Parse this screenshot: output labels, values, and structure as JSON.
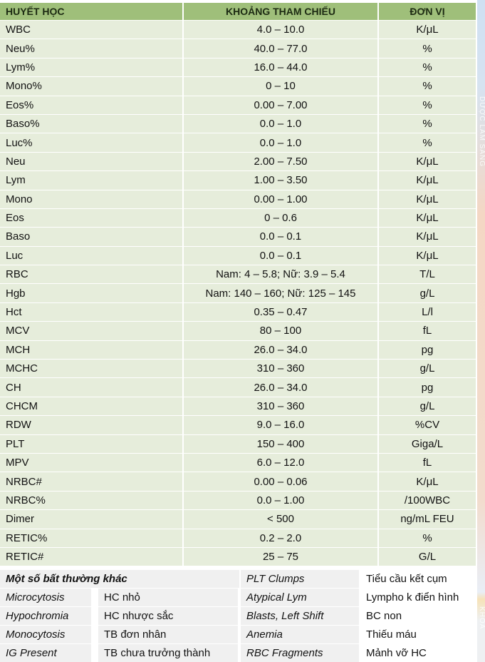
{
  "headers": {
    "test": "HUYẾT HỌC",
    "range": "KHOẢNG THAM CHIẾU",
    "unit": "ĐƠN VỊ"
  },
  "rows": [
    {
      "test": "WBC",
      "range": "4.0 – 10.0",
      "unit": "K/μL"
    },
    {
      "test": "Neu%",
      "range": "40.0 – 77.0",
      "unit": "%"
    },
    {
      "test": "Lym%",
      "range": "16.0 – 44.0",
      "unit": "%"
    },
    {
      "test": "Mono%",
      "range": "0 – 10",
      "unit": "%"
    },
    {
      "test": "Eos%",
      "range": "0.00 – 7.00",
      "unit": "%"
    },
    {
      "test": "Baso%",
      "range": "0.0 – 1.0",
      "unit": "%"
    },
    {
      "test": "Luc%",
      "range": "0.0 – 1.0",
      "unit": "%"
    },
    {
      "test": "Neu",
      "range": "2.00 – 7.50",
      "unit": "K/μL"
    },
    {
      "test": "Lym",
      "range": "1.00 – 3.50",
      "unit": "K/μL"
    },
    {
      "test": "Mono",
      "range": "0.00 – 1.00",
      "unit": "K/μL"
    },
    {
      "test": "Eos",
      "range": "0 – 0.6",
      "unit": "K/μL"
    },
    {
      "test": "Baso",
      "range": "0.0 – 0.1",
      "unit": "K/μL"
    },
    {
      "test": "Luc",
      "range": "0.0 – 0.1",
      "unit": "K/μL"
    },
    {
      "test": "RBC",
      "range": "Nam: 4 – 5.8; Nữ: 3.9 – 5.4",
      "unit": "T/L"
    },
    {
      "test": "Hgb",
      "range": "Nam: 140 – 160; Nữ: 125 – 145",
      "unit": "g/L"
    },
    {
      "test": "Hct",
      "range": "0.35 – 0.47",
      "unit": "L/l"
    },
    {
      "test": "MCV",
      "range": "80 – 100",
      "unit": "fL"
    },
    {
      "test": "MCH",
      "range": "26.0 – 34.0",
      "unit": "pg"
    },
    {
      "test": "MCHC",
      "range": "310 – 360",
      "unit": "g/L"
    },
    {
      "test": "CH",
      "range": "26.0 – 34.0",
      "unit": "pg"
    },
    {
      "test": "CHCM",
      "range": "310 – 360",
      "unit": "g/L"
    },
    {
      "test": "RDW",
      "range": "9.0 – 16.0",
      "unit": "%CV"
    },
    {
      "test": "PLT",
      "range": "150 – 400",
      "unit": "Giga/L"
    },
    {
      "test": "MPV",
      "range": "6.0 – 12.0",
      "unit": "fL"
    },
    {
      "test": "NRBC#",
      "range": "0.00 – 0.06",
      "unit": "K/μL"
    },
    {
      "test": "NRBC%",
      "range": "0.0 – 1.00",
      "unit": "/100WBC"
    },
    {
      "test": "Dimer",
      "range": "< 500",
      "unit": "ng/mL FEU"
    },
    {
      "test": "RETIC%",
      "range": "0.2 – 2.0",
      "unit": "%"
    },
    {
      "test": "RETIC#",
      "range": "25 – 75",
      "unit": "G/L"
    }
  ],
  "abnormal": {
    "title": "Một số bất thường khác",
    "first": {
      "term": "PLT Clumps",
      "meaning": "Tiểu cầu kết cụm"
    },
    "rows": [
      {
        "term1": "Microcytosis",
        "meaning1": "HC nhỏ",
        "term2": "Atypical Lym",
        "meaning2": "Lympho k điển hình"
      },
      {
        "term1": "Hypochromia",
        "meaning1": "HC nhược sắc",
        "term2": "Blasts, Left Shift",
        "meaning2": "BC non"
      },
      {
        "term1": "Monocytosis",
        "meaning1": "TB đơn nhân",
        "term2": "Anemia",
        "meaning2": "Thiếu máu"
      },
      {
        "term1": "IG Present",
        "meaning1": "TB chưa trưởng thành",
        "term2": "RBC Fragments",
        "meaning2": "Mảnh vỡ HC"
      }
    ]
  },
  "side_texts": [
    "DƯỢC LÂM SÀNG",
    "KHOA"
  ]
}
